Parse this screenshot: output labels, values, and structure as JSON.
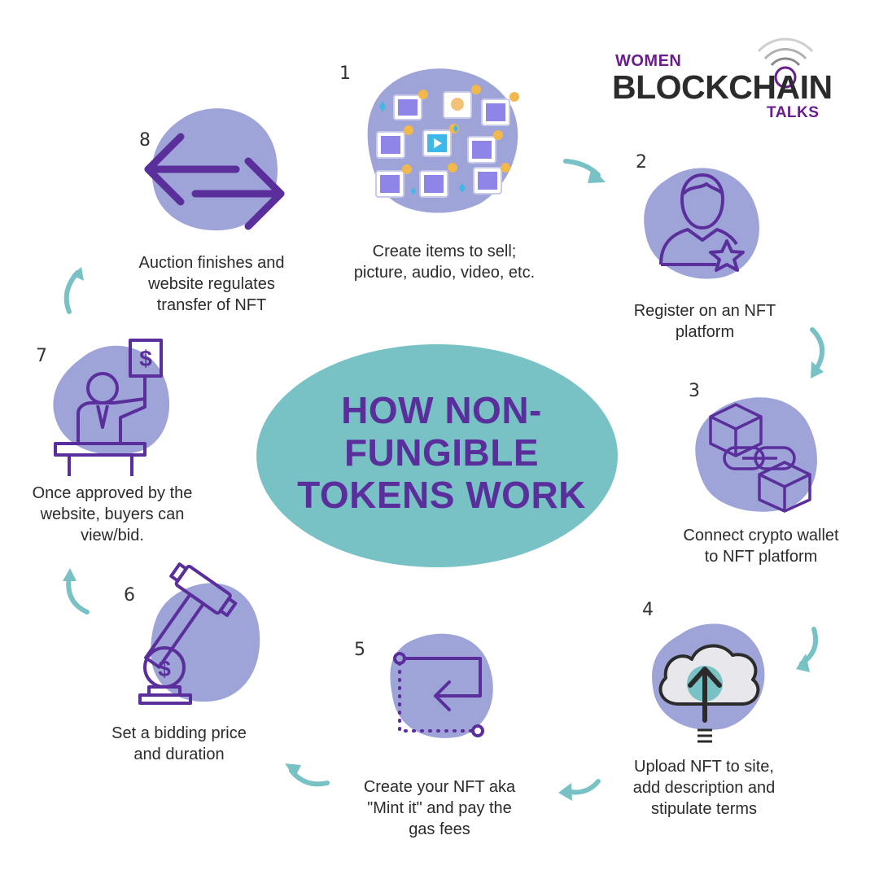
{
  "title": "HOW NON-FUNGIBLE TOKENS WORK",
  "title_lines": [
    "HOW NON-",
    "FUNGIBLE",
    "TOKENS WORK"
  ],
  "logo": {
    "word1": "WOMEN",
    "word2": "BLOCKCHAIN",
    "word3": "TALKS"
  },
  "colors": {
    "blob": "#9ea4d8",
    "ellipse": "#78c2c6",
    "arrow": "#78c2c6",
    "icon": "#5a2f9c",
    "title": "#5a2f9c",
    "logo_purple": "#6a1e8c"
  },
  "steps": [
    {
      "number": "1",
      "caption": [
        "Create items to sell;",
        "picture, audio, video, etc."
      ],
      "icon": "nft-collage-icon"
    },
    {
      "number": "2",
      "caption": [
        "Register on an NFT",
        "platform"
      ],
      "icon": "user-star-icon"
    },
    {
      "number": "3",
      "caption": [
        "Connect crypto wallet",
        "to NFT platform"
      ],
      "icon": "blockchain-link-icon"
    },
    {
      "number": "4",
      "caption": [
        "Upload NFT to site,",
        "add description and",
        "stipulate terms"
      ],
      "icon": "cloud-upload-icon"
    },
    {
      "number": "5",
      "caption": [
        "Create your NFT aka",
        "\"Mint it\" and pay the",
        "gas fees"
      ],
      "icon": "mint-flow-icon"
    },
    {
      "number": "6",
      "caption": [
        "Set a bidding price",
        "and duration"
      ],
      "icon": "gavel-coin-icon"
    },
    {
      "number": "7",
      "caption": [
        "Once approved by the",
        "website, buyers can",
        "view/bid."
      ],
      "icon": "bidder-icon"
    },
    {
      "number": "8",
      "caption": [
        "Auction finishes and",
        "website regulates",
        "transfer of NFT"
      ],
      "icon": "transfer-arrows-icon"
    }
  ]
}
